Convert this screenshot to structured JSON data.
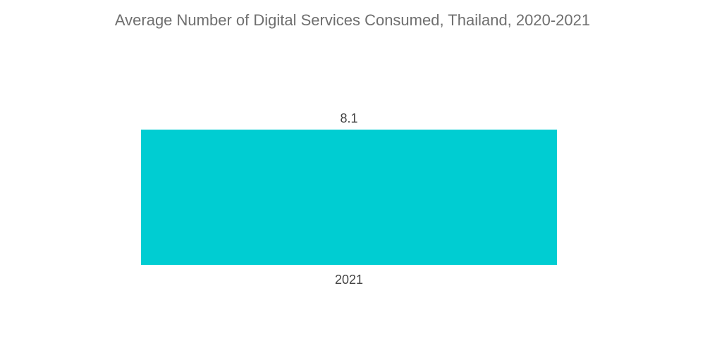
{
  "chart_data": {
    "type": "bar",
    "title": "Average Number of Digital Services Consumed, Thailand, 2020-2021",
    "categories": [
      "2021"
    ],
    "values": [
      8.1
    ],
    "xlabel": "",
    "ylabel": "",
    "ylim": [
      0,
      8.1
    ],
    "grid": false,
    "legend": "none",
    "bar_color": "#00cdd2"
  }
}
